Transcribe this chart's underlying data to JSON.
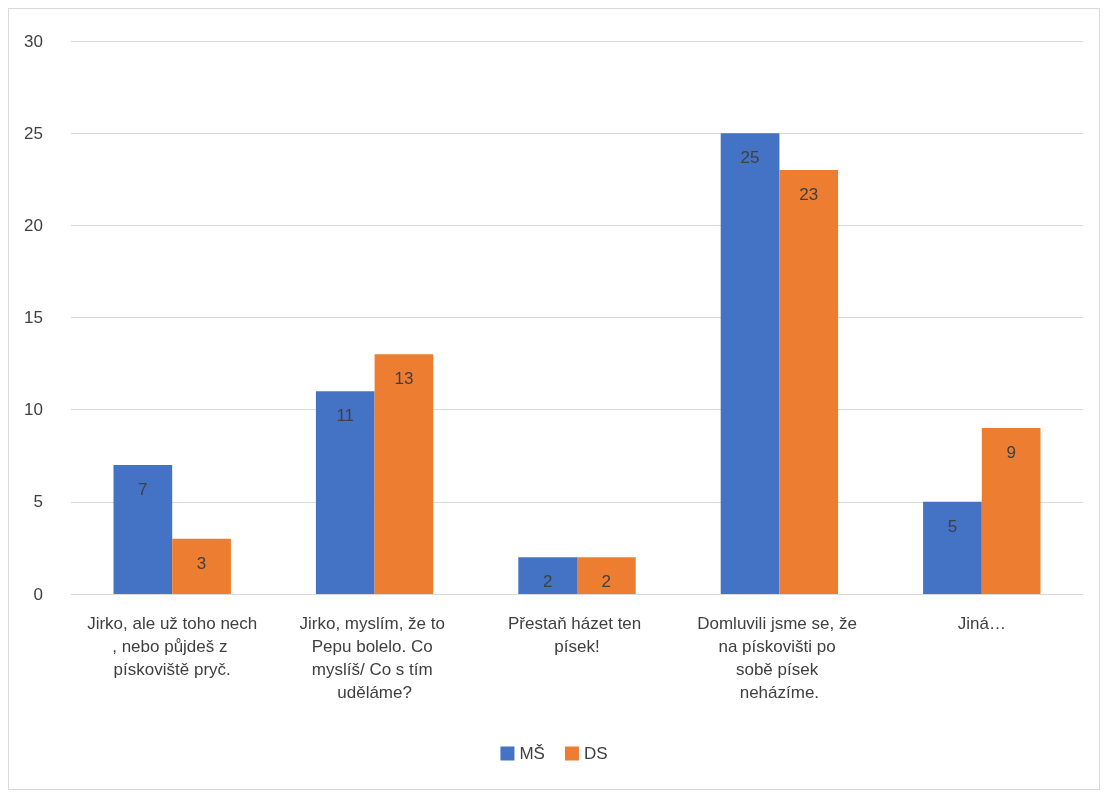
{
  "chart_data": {
    "type": "bar",
    "categories": [
      "Jirko, ale už toho nech, nebo půjdeš z pískoviště pryč.",
      "Jirko, myslím, že to Pepu bolelo. Co myslíš/ Co s tím uděláme?",
      "Přestaň házet ten písek!",
      "Domluvili jsme se, že na pískovišti po sobě písek neházíme.",
      "Jiná…"
    ],
    "series": [
      {
        "name": "MŠ",
        "color": "#4472c4",
        "values": [
          7,
          11,
          2,
          25,
          5
        ]
      },
      {
        "name": "DS",
        "color": "#ed7d31",
        "values": [
          3,
          13,
          2,
          23,
          9
        ]
      }
    ],
    "ylim": [
      0,
      30
    ],
    "yticks": [
      0,
      5,
      10,
      15,
      20,
      25,
      30
    ],
    "grid": "y",
    "legend": "bottom",
    "data_labels": true
  }
}
